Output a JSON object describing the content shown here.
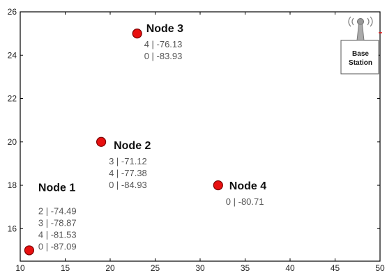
{
  "chart_data": {
    "type": "scatter",
    "xlim": [
      10,
      50
    ],
    "ylim": [
      14.5,
      26
    ],
    "x_ticks": [
      10,
      15,
      20,
      25,
      30,
      35,
      40,
      45,
      50
    ],
    "y_ticks": [
      16,
      18,
      20,
      22,
      24,
      26
    ],
    "grid": false,
    "point_color": "#e81010",
    "nodes": [
      {
        "name": "Node 1",
        "x": 11,
        "y": 15,
        "rssi": [
          "2 | -74.49",
          "3 | -78.87",
          "4 | -81.53",
          "0 | -87.09"
        ]
      },
      {
        "name": "Node 2",
        "x": 19,
        "y": 20,
        "rssi": [
          "3 | -71.12",
          "4 | -77.38",
          "0 | -84.93"
        ]
      },
      {
        "name": "Node 3",
        "x": 23,
        "y": 25,
        "rssi": [
          "4 | -76.13",
          "0 | -83.93"
        ]
      },
      {
        "name": "Node 4",
        "x": 32,
        "y": 18,
        "rssi": [
          "0 | -80.71"
        ]
      }
    ],
    "base_station": {
      "label_line1": "Base",
      "label_line2": "Station",
      "x": 49.5,
      "y": 25,
      "icon": "antenna-tower-icon"
    }
  }
}
